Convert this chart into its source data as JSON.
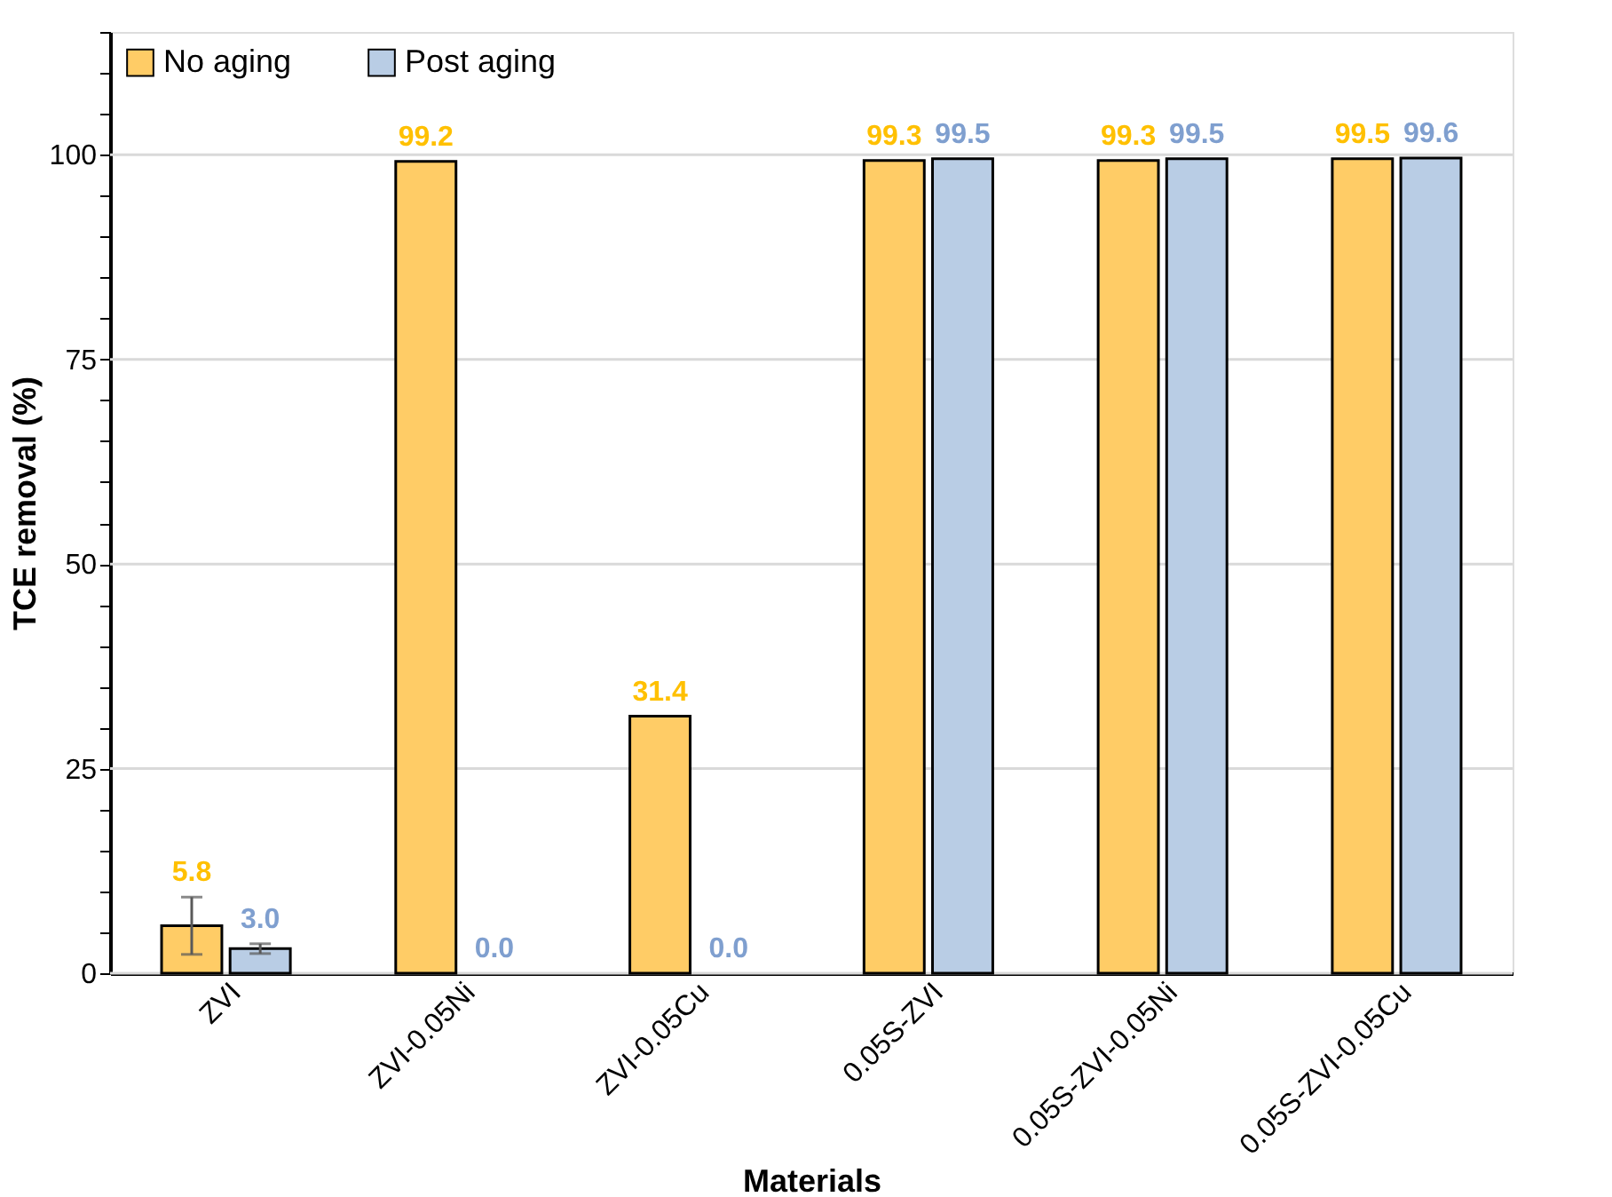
{
  "chart_data": {
    "type": "bar",
    "xlabel": "Materials",
    "ylabel": "TCE removal (%)",
    "categories": [
      "ZVI",
      "ZVI-0.05Ni",
      "ZVI-0.05Cu",
      "0.05S-ZVI",
      "0.05S-ZVI-0.05Ni",
      "0.05S-ZVI-0.05Cu"
    ],
    "series": [
      {
        "name": "No aging",
        "color": "#ffcc66",
        "values": [
          5.8,
          99.2,
          31.4,
          99.3,
          99.3,
          99.5
        ],
        "errors": [
          3.5,
          null,
          null,
          null,
          null,
          null
        ],
        "value_labels": [
          "5.8",
          "99.2",
          "31.4",
          "99.3",
          "99.3",
          "99.5"
        ]
      },
      {
        "name": "Post aging",
        "color": "#b9cde5",
        "values": [
          3.0,
          0.0,
          0.0,
          99.5,
          99.5,
          99.6
        ],
        "errors": [
          0.6,
          null,
          null,
          null,
          null,
          null
        ],
        "value_labels": [
          "3.0",
          "0.0",
          "0.0",
          "99.5",
          "99.5",
          "99.6"
        ]
      }
    ],
    "ylim": [
      0,
      115
    ],
    "yticks": [
      0,
      {
        "value": 5,
        "label": null
      },
      {
        "value": 10,
        "label": null
      },
      {
        "value": 15,
        "label": null
      },
      {
        "value": 20,
        "label": null
      },
      25,
      {
        "value": 30,
        "label": null
      },
      {
        "value": 35,
        "label": null
      },
      {
        "value": 40,
        "label": null
      },
      {
        "value": 45,
        "label": null
      },
      50,
      {
        "value": 55,
        "label": null
      },
      {
        "value": 60,
        "label": null
      },
      {
        "value": 65,
        "label": null
      },
      {
        "value": 70,
        "label": null
      },
      75,
      {
        "value": 80,
        "label": null
      },
      {
        "value": 85,
        "label": null
      },
      {
        "value": 90,
        "label": null
      },
      {
        "value": 95,
        "label": null
      },
      100,
      {
        "value": 105,
        "label": null
      },
      {
        "value": 110,
        "label": null
      },
      {
        "value": 115,
        "label": null
      }
    ],
    "grid": "y",
    "legend": "top left"
  }
}
